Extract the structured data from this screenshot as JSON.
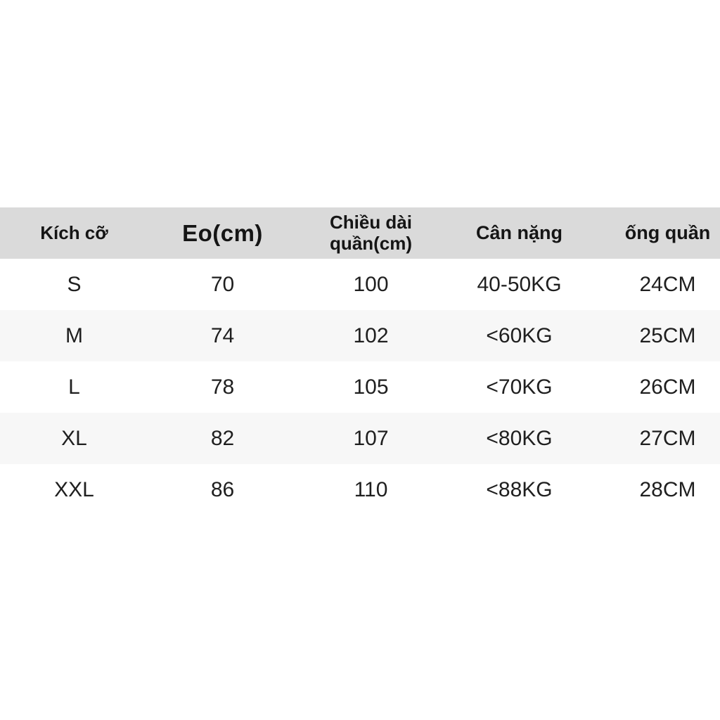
{
  "colors": {
    "page_bg": "#ffffff",
    "header_bg": "#dadada",
    "alt_row_bg": "#f7f7f7",
    "text": "#1f1f1f"
  },
  "chart_data": {
    "type": "table",
    "title": "",
    "columns": [
      "Kích cỡ",
      "Eo(cm)",
      "Chiều dài quần(cm)",
      "Cân nặng",
      "ống quần"
    ],
    "rows": [
      [
        "S",
        "70",
        "100",
        "40-50KG",
        "24CM"
      ],
      [
        "M",
        "74",
        "102",
        "<60KG",
        "25CM"
      ],
      [
        "L",
        "78",
        "105",
        "<70KG",
        "26CM"
      ],
      [
        "XL",
        "82",
        "107",
        "<80KG",
        "27CM"
      ],
      [
        "XXL",
        "86",
        "110",
        "<88KG",
        "28CM"
      ]
    ],
    "layout": {
      "header_background": "#dadada",
      "alternating_row_background": "#f7f7f7",
      "grid": "off",
      "column_alignment": "center"
    }
  }
}
